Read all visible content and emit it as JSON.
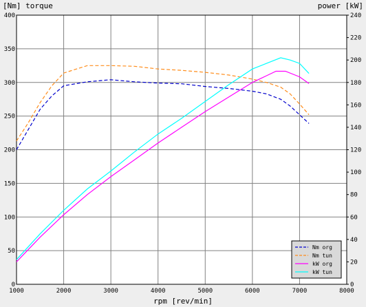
{
  "chart_data": {
    "type": "line",
    "left_axis_label": "[Nm] torque",
    "right_axis_label": "power [kW]",
    "xlabel": "rpm [rev/min]",
    "xlim": [
      1000,
      8000
    ],
    "x_ticks": [
      1000,
      2000,
      3000,
      4000,
      5000,
      6000,
      7000,
      8000
    ],
    "ylim_left": [
      0,
      400
    ],
    "y_left_ticks": [
      0,
      50,
      100,
      150,
      200,
      250,
      300,
      350,
      400
    ],
    "ylim_right": [
      0,
      240
    ],
    "y_right_ticks": [
      0,
      20,
      40,
      60,
      80,
      100,
      120,
      140,
      160,
      180,
      200,
      220,
      240
    ],
    "grid": true,
    "legend_position": "bottom-right",
    "series": [
      {
        "name": "Nm org",
        "axis": "left",
        "color": "#0000cc",
        "dash": true,
        "points": [
          [
            1000,
            200
          ],
          [
            1250,
            230
          ],
          [
            1500,
            260
          ],
          [
            1750,
            280
          ],
          [
            2000,
            295
          ],
          [
            2500,
            301
          ],
          [
            3000,
            304
          ],
          [
            3500,
            301
          ],
          [
            4000,
            299
          ],
          [
            4500,
            298
          ],
          [
            5000,
            294
          ],
          [
            5500,
            291
          ],
          [
            6000,
            287
          ],
          [
            6300,
            283
          ],
          [
            6600,
            275
          ],
          [
            6800,
            265
          ],
          [
            7000,
            252
          ],
          [
            7200,
            239
          ]
        ]
      },
      {
        "name": "Nm tun",
        "axis": "left",
        "color": "#ff8c1a",
        "dash": true,
        "points": [
          [
            1000,
            213
          ],
          [
            1250,
            240
          ],
          [
            1500,
            270
          ],
          [
            1750,
            295
          ],
          [
            2000,
            314
          ],
          [
            2500,
            325
          ],
          [
            3000,
            325
          ],
          [
            3500,
            324
          ],
          [
            4000,
            320
          ],
          [
            4500,
            318
          ],
          [
            5000,
            315
          ],
          [
            5500,
            311
          ],
          [
            6000,
            305
          ],
          [
            6300,
            300
          ],
          [
            6600,
            293
          ],
          [
            6800,
            283
          ],
          [
            7000,
            268
          ],
          [
            7200,
            252
          ]
        ]
      },
      {
        "name": "kW org",
        "axis": "right",
        "color": "#ff00ff",
        "dash": false,
        "points": [
          [
            1000,
            20
          ],
          [
            1500,
            42
          ],
          [
            2000,
            62
          ],
          [
            2500,
            80
          ],
          [
            3000,
            96
          ],
          [
            3500,
            111
          ],
          [
            4000,
            126
          ],
          [
            4500,
            140
          ],
          [
            5000,
            154
          ],
          [
            5500,
            167
          ],
          [
            6000,
            180
          ],
          [
            6300,
            186
          ],
          [
            6500,
            190
          ],
          [
            6700,
            190
          ],
          [
            7000,
            185
          ],
          [
            7200,
            179
          ]
        ]
      },
      {
        "name": "kW tun",
        "axis": "right",
        "color": "#00ffff",
        "dash": false,
        "points": [
          [
            1000,
            22
          ],
          [
            1500,
            45
          ],
          [
            2000,
            66
          ],
          [
            2500,
            85
          ],
          [
            3000,
            101
          ],
          [
            3500,
            118
          ],
          [
            4000,
            134
          ],
          [
            4500,
            148
          ],
          [
            5000,
            163
          ],
          [
            5500,
            178
          ],
          [
            6000,
            192
          ],
          [
            6300,
            197
          ],
          [
            6600,
            202
          ],
          [
            6800,
            200
          ],
          [
            7000,
            197
          ],
          [
            7200,
            188
          ]
        ]
      }
    ]
  }
}
